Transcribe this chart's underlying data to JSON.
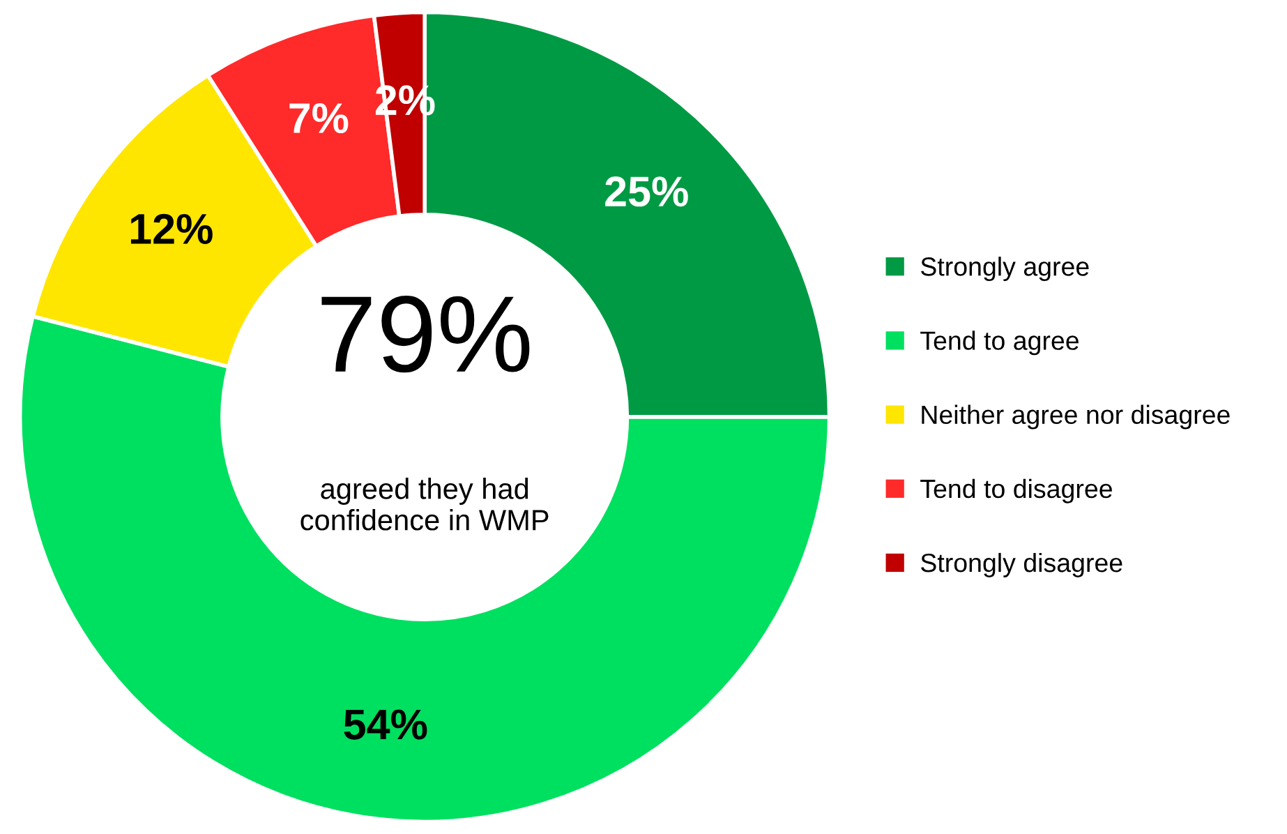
{
  "chart_data": {
    "type": "donut",
    "categories": [
      "Strongly agree",
      "Tend to agree",
      "Neither agree nor disagree",
      "Tend to disagree",
      "Strongly disagree"
    ],
    "values": [
      25,
      54,
      12,
      7,
      2
    ],
    "colors": [
      "#009a44",
      "#00e060",
      "#ffe600",
      "#ff2a2a",
      "#c00000"
    ],
    "value_labels": [
      "25%",
      "54%",
      "12%",
      "7%",
      "2%"
    ],
    "annotations": [
      "79%",
      "agreed they had confidence in WMP"
    ],
    "legend": "right"
  }
}
